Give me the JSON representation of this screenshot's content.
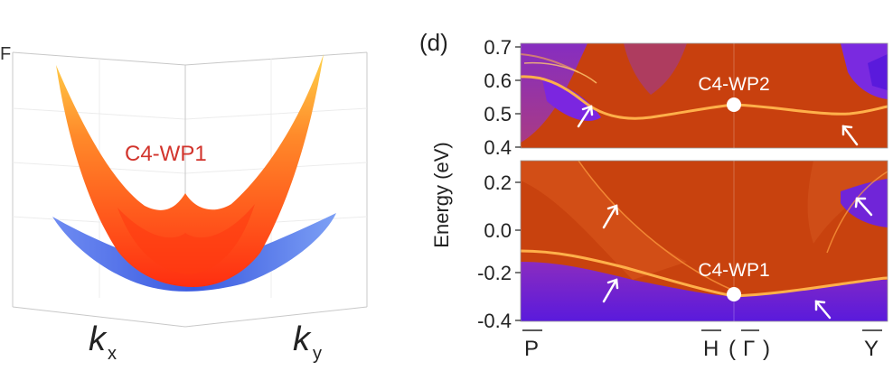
{
  "left_panel": {
    "cone_label": "C4-WP1",
    "corner_letter": "F",
    "axis_kx_main": "k",
    "axis_kx_sub": "x",
    "axis_ky_main": "k",
    "axis_ky_sub": "y"
  },
  "right_panel": {
    "panel_label": "(d)",
    "ylabel": "Energy (eV)",
    "upper_ticks": [
      "0.7",
      "0.6",
      "0.5",
      "0.4"
    ],
    "lower_ticks": [
      "0.2",
      "0.0",
      "-0.2",
      "-0.4"
    ],
    "x_ticks": [
      "P",
      "H",
      "(",
      "Γ",
      ")",
      "Y"
    ],
    "point_label_upper": "C4-WP2",
    "point_label_lower": "C4-WP1"
  },
  "colors": {
    "band_background": "#c83c0c",
    "bulk_purple": "#6a1fd8",
    "surface_state": "#ffb04a",
    "upper_cone": "#ff5a1e",
    "lower_cone": "#5a78e8",
    "label_red": "#d2342c"
  }
}
